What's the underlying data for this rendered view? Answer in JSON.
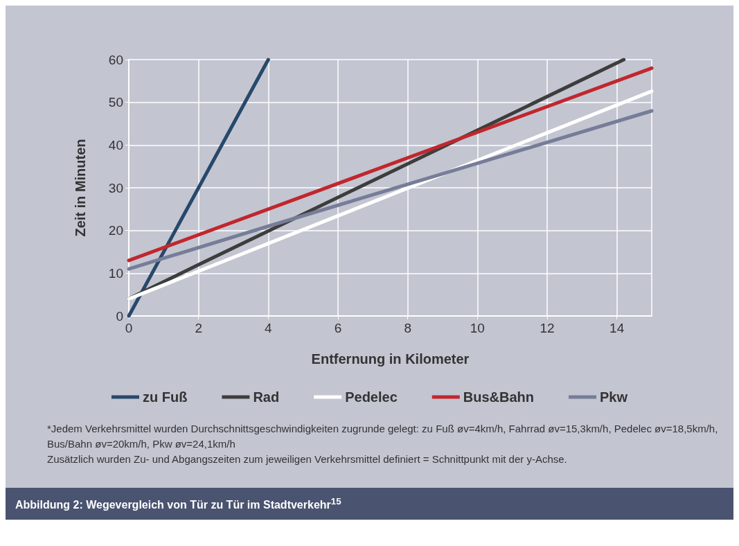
{
  "chart_data": {
    "type": "line",
    "title": "Abbildung 2: Wegevergleich von Tür zu Tür im Stadtverkehr$^{15}$",
    "xlabel": "Entfernung in Kilometer",
    "ylabel": "Zeit in Minuten",
    "xlim": [
      0,
      15
    ],
    "xticks": [
      0,
      2,
      4,
      6,
      8,
      10,
      12,
      14
    ],
    "ylim": [
      0,
      60
    ],
    "yticks": [
      0,
      10,
      20,
      30,
      40,
      50,
      60
    ],
    "grid": true,
    "legend": "bottom",
    "marker": "none",
    "line_style": "solid",
    "series": [
      {
        "name": "zu Fuß",
        "color": "#27486a",
        "x": [
          0,
          4
        ],
        "values": [
          0,
          60
        ]
      },
      {
        "name": "Rad",
        "color": "#3d3d3d",
        "x": [
          0,
          2,
          14.2
        ],
        "values": [
          4,
          12,
          60
        ]
      },
      {
        "name": "Pedelec",
        "color": "#ffffff",
        "x": [
          0,
          15
        ],
        "values": [
          4,
          52.6
        ]
      },
      {
        "name": "Bus&Bahn",
        "color": "#c0272d",
        "x": [
          0,
          15
        ],
        "values": [
          13,
          58
        ]
      },
      {
        "name": "Pkw",
        "color": "#767d98",
        "x": [
          0,
          4,
          15
        ],
        "values": [
          11,
          21,
          48
        ]
      }
    ],
    "annotations": [
      "*Jedem Verkehrsmittel wurden Durchschnittsgeschwindigkeiten zugrunde gelegt: zu Fuß øv=4km/h, Fahrrad øv=15,3km/h, Pedelec øv=18,5km/h, Bus/Bahn øv=20km/h, Pkw øv=24,1km/h",
      "Zusätzlich wurden Zu- und Abgangszeiten zum jeweiligen Verkehrsmittel definiert = Schnittpunkt mit der y-Achse."
    ]
  }
}
